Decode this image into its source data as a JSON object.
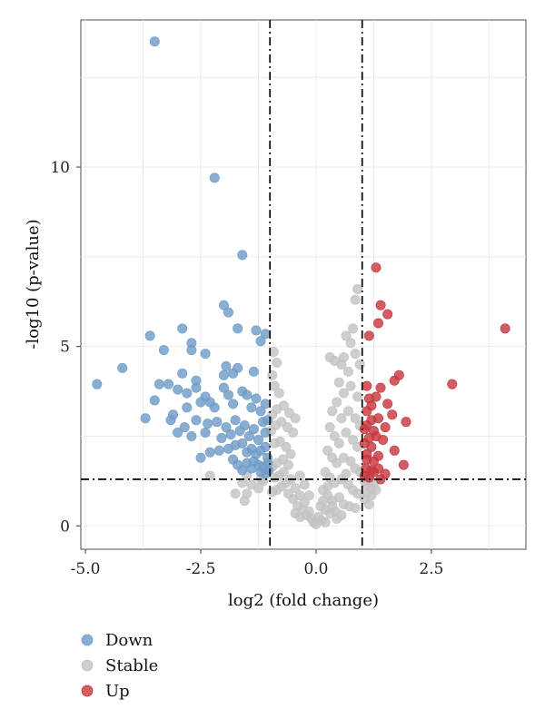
{
  "chart_data": {
    "type": "scatter",
    "title": "",
    "xlabel": "log2 (fold change)",
    "ylabel": "-log10 (p-value)",
    "xlim": [
      -5.1,
      4.55
    ],
    "ylim": [
      -0.65,
      14.1
    ],
    "x_ticks": [
      -5.0,
      -2.5,
      0.0,
      2.5
    ],
    "x_tick_labels": [
      "-5.0",
      "-2.5",
      "0.0",
      "2.5"
    ],
    "y_ticks": [
      0,
      5,
      10
    ],
    "y_tick_labels": [
      "0",
      "5",
      "10"
    ],
    "grid": true,
    "thresholds": {
      "log2fc": [
        -1,
        1
      ],
      "neg_log10_p": 1.3
    },
    "legend_position": "bottom-left",
    "series": [
      {
        "name": "Down",
        "color": "#6f9cc8",
        "points": [
          [
            -3.5,
            13.5
          ],
          [
            -2.2,
            9.7
          ],
          [
            -1.6,
            7.55
          ],
          [
            -2.0,
            6.15
          ],
          [
            -1.9,
            5.95
          ],
          [
            -2.9,
            5.5
          ],
          [
            -3.6,
            5.3
          ],
          [
            -1.7,
            5.5
          ],
          [
            -1.3,
            5.45
          ],
          [
            -1.1,
            5.35
          ],
          [
            -2.7,
            5.1
          ],
          [
            -3.3,
            4.9
          ],
          [
            -2.7,
            4.9
          ],
          [
            -2.4,
            4.8
          ],
          [
            -1.2,
            5.15
          ],
          [
            -4.2,
            4.4
          ],
          [
            -4.75,
            3.95
          ],
          [
            -1.95,
            4.45
          ],
          [
            -1.7,
            4.4
          ],
          [
            -1.35,
            4.3
          ],
          [
            -2.9,
            4.25
          ],
          [
            -3.4,
            3.95
          ],
          [
            -3.2,
            3.95
          ],
          [
            -2.6,
            4.05
          ],
          [
            -2.0,
            4.2
          ],
          [
            -1.8,
            4.25
          ],
          [
            -3.0,
            3.8
          ],
          [
            -3.5,
            3.5
          ],
          [
            -2.8,
            3.7
          ],
          [
            -2.6,
            3.85
          ],
          [
            -2.4,
            3.6
          ],
          [
            -2.3,
            3.45
          ],
          [
            -2.0,
            3.85
          ],
          [
            -1.9,
            3.65
          ],
          [
            -1.6,
            3.75
          ],
          [
            -1.5,
            3.65
          ],
          [
            -1.3,
            3.55
          ],
          [
            -1.1,
            3.4
          ],
          [
            -3.1,
            3.1
          ],
          [
            -2.8,
            3.3
          ],
          [
            -2.5,
            3.45
          ],
          [
            -2.2,
            3.3
          ],
          [
            -1.8,
            3.4
          ],
          [
            -1.4,
            3.3
          ],
          [
            -1.2,
            3.2
          ],
          [
            -3.7,
            3.0
          ],
          [
            -3.15,
            2.95
          ],
          [
            -2.85,
            2.75
          ],
          [
            -2.6,
            2.95
          ],
          [
            -2.35,
            2.85
          ],
          [
            -2.15,
            2.9
          ],
          [
            -1.95,
            2.75
          ],
          [
            -1.75,
            2.95
          ],
          [
            -1.55,
            2.8
          ],
          [
            -1.35,
            2.7
          ],
          [
            -1.15,
            2.9
          ],
          [
            -1.05,
            2.95
          ],
          [
            -3.0,
            2.6
          ],
          [
            -2.7,
            2.5
          ],
          [
            -2.4,
            2.6
          ],
          [
            -2.05,
            2.45
          ],
          [
            -1.85,
            2.55
          ],
          [
            -1.65,
            2.65
          ],
          [
            -1.45,
            2.5
          ],
          [
            -1.25,
            2.4
          ],
          [
            -1.1,
            2.6
          ],
          [
            -2.3,
            2.05
          ],
          [
            -2.1,
            2.1
          ],
          [
            -1.9,
            2.15
          ],
          [
            -1.75,
            2.25
          ],
          [
            -1.6,
            2.3
          ],
          [
            -1.5,
            2.05
          ],
          [
            -1.4,
            2.15
          ],
          [
            -1.3,
            2.0
          ],
          [
            -1.2,
            2.1
          ],
          [
            -1.1,
            2.2
          ],
          [
            -1.05,
            1.9
          ],
          [
            -2.5,
            1.9
          ],
          [
            -1.8,
            1.85
          ],
          [
            -1.7,
            1.7
          ],
          [
            -1.5,
            1.75
          ],
          [
            -1.35,
            1.8
          ],
          [
            -1.25,
            1.7
          ],
          [
            -1.15,
            1.65
          ],
          [
            -1.05,
            1.75
          ],
          [
            -1.6,
            1.55
          ],
          [
            -1.4,
            1.6
          ],
          [
            -1.2,
            1.5
          ],
          [
            -1.1,
            1.45
          ],
          [
            -1.03,
            1.55
          ]
        ]
      },
      {
        "name": "Stable",
        "color": "#c3c3c3",
        "points": [
          [
            0.9,
            6.6
          ],
          [
            0.85,
            6.3
          ],
          [
            0.8,
            5.5
          ],
          [
            0.75,
            5.1
          ],
          [
            0.65,
            5.3
          ],
          [
            0.6,
            4.7
          ],
          [
            0.55,
            4.5
          ],
          [
            0.7,
            4.3
          ],
          [
            0.85,
            4.8
          ],
          [
            0.95,
            4.5
          ],
          [
            0.3,
            4.7
          ],
          [
            0.4,
            4.6
          ],
          [
            0.5,
            4.0
          ],
          [
            0.6,
            3.7
          ],
          [
            0.75,
            3.9
          ],
          [
            0.9,
            3.6
          ],
          [
            0.45,
            3.45
          ],
          [
            0.35,
            3.2
          ],
          [
            0.55,
            3.0
          ],
          [
            0.7,
            3.2
          ],
          [
            0.85,
            3.0
          ],
          [
            0.95,
            2.8
          ],
          [
            0.3,
            2.75
          ],
          [
            0.4,
            2.5
          ],
          [
            0.5,
            2.3
          ],
          [
            0.65,
            2.6
          ],
          [
            0.8,
            2.4
          ],
          [
            0.9,
            2.2
          ],
          [
            0.25,
            2.1
          ],
          [
            0.35,
            1.9
          ],
          [
            0.45,
            1.75
          ],
          [
            0.6,
            1.9
          ],
          [
            0.75,
            1.8
          ],
          [
            0.85,
            1.6
          ],
          [
            0.95,
            1.5
          ],
          [
            0.2,
            1.5
          ],
          [
            0.3,
            1.35
          ],
          [
            0.4,
            1.2
          ],
          [
            0.55,
            1.3
          ],
          [
            0.7,
            1.15
          ],
          [
            0.8,
            1.0
          ],
          [
            0.9,
            0.9
          ],
          [
            0.15,
            1.0
          ],
          [
            0.25,
            0.85
          ],
          [
            0.35,
            0.7
          ],
          [
            0.5,
            0.8
          ],
          [
            0.6,
            0.6
          ],
          [
            0.72,
            0.55
          ],
          [
            0.85,
            0.5
          ],
          [
            0.1,
            0.55
          ],
          [
            0.2,
            0.45
          ],
          [
            0.3,
            0.35
          ],
          [
            0.42,
            0.4
          ],
          [
            0.55,
            0.3
          ],
          [
            0.05,
            0.25
          ],
          [
            0.12,
            0.15
          ],
          [
            0.2,
            0.1
          ],
          [
            0.0,
            0.05
          ],
          [
            -0.05,
            0.1
          ],
          [
            -0.1,
            0.2
          ],
          [
            -0.2,
            0.3
          ],
          [
            -0.3,
            0.45
          ],
          [
            -0.4,
            0.55
          ],
          [
            -0.15,
            0.4
          ],
          [
            -0.25,
            0.65
          ],
          [
            -0.35,
            0.85
          ],
          [
            -0.5,
            0.75
          ],
          [
            -0.6,
            0.9
          ],
          [
            -0.45,
            1.05
          ],
          [
            -0.55,
            1.3
          ],
          [
            -0.65,
            1.2
          ],
          [
            -0.75,
            1.1
          ],
          [
            -0.85,
            1.0
          ],
          [
            -0.95,
            0.95
          ],
          [
            -0.7,
            1.5
          ],
          [
            -0.8,
            1.4
          ],
          [
            -0.9,
            1.35
          ],
          [
            -0.6,
            1.7
          ],
          [
            -0.72,
            1.85
          ],
          [
            -0.85,
            1.75
          ],
          [
            -0.95,
            1.65
          ],
          [
            -0.55,
            2.0
          ],
          [
            -0.65,
            2.2
          ],
          [
            -0.78,
            2.35
          ],
          [
            -0.9,
            2.3
          ],
          [
            -0.5,
            2.6
          ],
          [
            -0.62,
            2.75
          ],
          [
            -0.75,
            2.9
          ],
          [
            -0.88,
            2.8
          ],
          [
            -0.98,
            2.65
          ],
          [
            -0.45,
            3.0
          ],
          [
            -0.58,
            3.15
          ],
          [
            -0.7,
            3.35
          ],
          [
            -0.85,
            3.25
          ],
          [
            -0.95,
            3.1
          ],
          [
            -0.8,
            3.7
          ],
          [
            -0.9,
            3.9
          ],
          [
            -0.95,
            4.2
          ],
          [
            -0.85,
            4.55
          ],
          [
            -0.92,
            4.85
          ],
          [
            -1.2,
            1.3
          ],
          [
            -1.5,
            1.4
          ],
          [
            -1.6,
            1.2
          ],
          [
            -1.5,
            0.9
          ],
          [
            -1.75,
            0.9
          ],
          [
            -1.55,
            0.7
          ],
          [
            -1.25,
            1.05
          ],
          [
            -1.4,
            1.15
          ],
          [
            -1.15,
            1.25
          ],
          [
            -2.3,
            1.4
          ],
          [
            1.05,
            1.25
          ],
          [
            1.1,
            1.15
          ],
          [
            1.15,
            1.3
          ],
          [
            1.2,
            1.05
          ],
          [
            1.25,
            1.2
          ],
          [
            1.1,
            0.9
          ],
          [
            1.2,
            0.85
          ],
          [
            1.3,
            1.0
          ],
          [
            1.05,
            0.75
          ],
          [
            1.15,
            0.6
          ],
          [
            -0.35,
            1.4
          ],
          [
            -0.25,
            1.15
          ],
          [
            -0.15,
            0.85
          ],
          [
            0.15,
            0.7
          ],
          [
            0.25,
            1.1
          ],
          [
            -0.45,
            0.35
          ],
          [
            -0.35,
            0.25
          ],
          [
            0.45,
            0.2
          ],
          [
            0.35,
            0.55
          ],
          [
            0.65,
            1.45
          ]
        ]
      },
      {
        "name": "Up",
        "color": "#c7383f",
        "points": [
          [
            1.3,
            7.2
          ],
          [
            4.1,
            5.5
          ],
          [
            1.4,
            6.15
          ],
          [
            1.55,
            5.9
          ],
          [
            1.35,
            5.65
          ],
          [
            1.15,
            5.3
          ],
          [
            2.95,
            3.95
          ],
          [
            1.8,
            4.2
          ],
          [
            1.7,
            4.05
          ],
          [
            1.4,
            3.85
          ],
          [
            1.1,
            3.9
          ],
          [
            1.15,
            3.55
          ],
          [
            1.3,
            3.6
          ],
          [
            1.55,
            3.4
          ],
          [
            1.2,
            3.35
          ],
          [
            1.1,
            3.2
          ],
          [
            1.65,
            3.1
          ],
          [
            1.35,
            3.0
          ],
          [
            1.2,
            2.95
          ],
          [
            1.95,
            2.9
          ],
          [
            1.1,
            2.8
          ],
          [
            1.5,
            2.75
          ],
          [
            1.25,
            2.65
          ],
          [
            1.05,
            2.7
          ],
          [
            1.3,
            2.5
          ],
          [
            1.15,
            2.45
          ],
          [
            1.45,
            2.4
          ],
          [
            1.05,
            2.3
          ],
          [
            1.2,
            2.2
          ],
          [
            1.1,
            2.0
          ],
          [
            1.7,
            2.1
          ],
          [
            1.35,
            1.95
          ],
          [
            1.25,
            1.8
          ],
          [
            1.1,
            1.85
          ],
          [
            1.9,
            1.7
          ],
          [
            1.35,
            1.6
          ],
          [
            1.2,
            1.55
          ],
          [
            1.05,
            1.4
          ],
          [
            1.15,
            1.35
          ],
          [
            1.5,
            1.45
          ],
          [
            1.25,
            1.5
          ],
          [
            1.08,
            1.6
          ],
          [
            1.4,
            1.3
          ]
        ]
      }
    ]
  }
}
